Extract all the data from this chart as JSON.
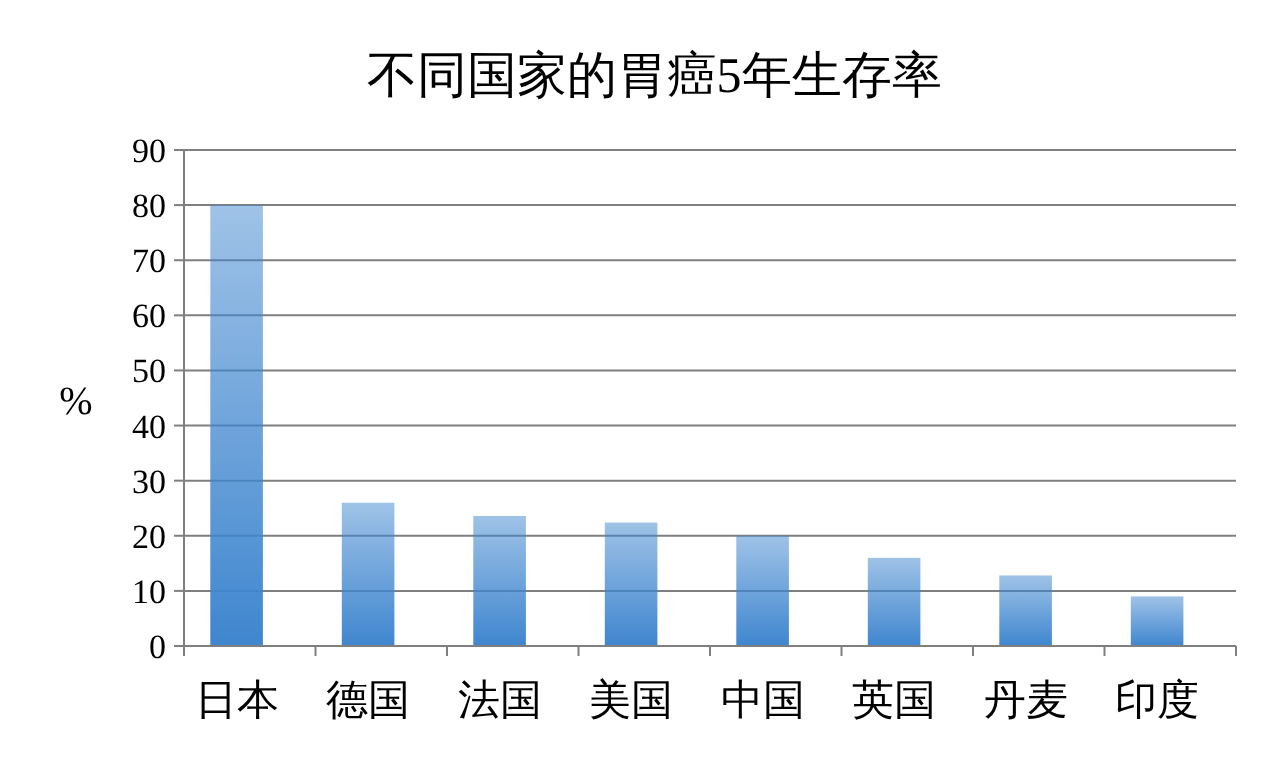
{
  "chart_data": {
    "type": "bar",
    "title": "不同国家的胃癌5年生存率",
    "ylabel": "%",
    "categories": [
      "日本",
      "德国",
      "法国",
      "美国",
      "中国",
      "英国",
      "丹麦",
      "印度"
    ],
    "values": [
      80,
      26,
      23.6,
      22.4,
      20,
      16,
      12.8,
      9
    ],
    "color": "#3f86cf",
    "ylim": [
      0,
      90
    ],
    "yticks": [
      0,
      10,
      20,
      30,
      40,
      50,
      60,
      70,
      80,
      90
    ],
    "grid": "y"
  }
}
